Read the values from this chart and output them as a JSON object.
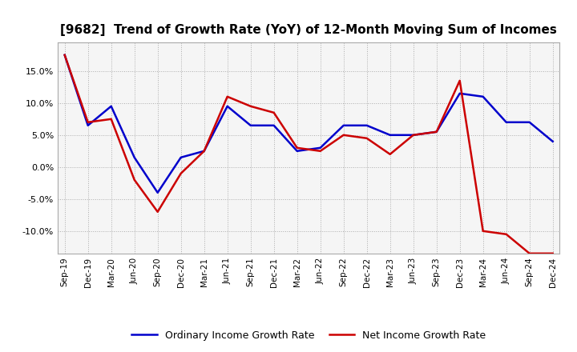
{
  "title": "[9682]  Trend of Growth Rate (YoY) of 12-Month Moving Sum of Incomes",
  "labels": [
    "Sep-19",
    "Dec-19",
    "Mar-20",
    "Jun-20",
    "Sep-20",
    "Dec-20",
    "Mar-21",
    "Jun-21",
    "Sep-21",
    "Dec-21",
    "Mar-22",
    "Jun-22",
    "Sep-22",
    "Dec-22",
    "Mar-23",
    "Jun-23",
    "Sep-23",
    "Dec-23",
    "Mar-24",
    "Jun-24",
    "Sep-24",
    "Dec-24"
  ],
  "ordinary_income": [
    17.5,
    6.5,
    9.5,
    1.5,
    -4.0,
    1.5,
    2.5,
    9.5,
    6.5,
    6.5,
    2.5,
    3.0,
    6.5,
    6.5,
    5.0,
    5.0,
    5.5,
    11.5,
    11.0,
    7.0,
    7.0,
    4.0
  ],
  "net_income": [
    17.5,
    7.0,
    7.5,
    -2.0,
    -7.0,
    -1.0,
    2.5,
    11.0,
    9.5,
    8.5,
    3.0,
    2.5,
    5.0,
    4.5,
    2.0,
    5.0,
    5.5,
    13.5,
    -10.0,
    -10.5,
    -13.5,
    -13.5
  ],
  "ordinary_color": "#0000cc",
  "net_color": "#cc0000",
  "ylim": [
    -13.5,
    19.5
  ],
  "yticks": [
    -10,
    -5,
    0,
    5,
    10,
    15
  ],
  "background_color": "#ffffff",
  "plot_bg_color": "#f5f5f5",
  "grid_color": "#999999",
  "legend_ordinary": "Ordinary Income Growth Rate",
  "legend_net": "Net Income Growth Rate"
}
